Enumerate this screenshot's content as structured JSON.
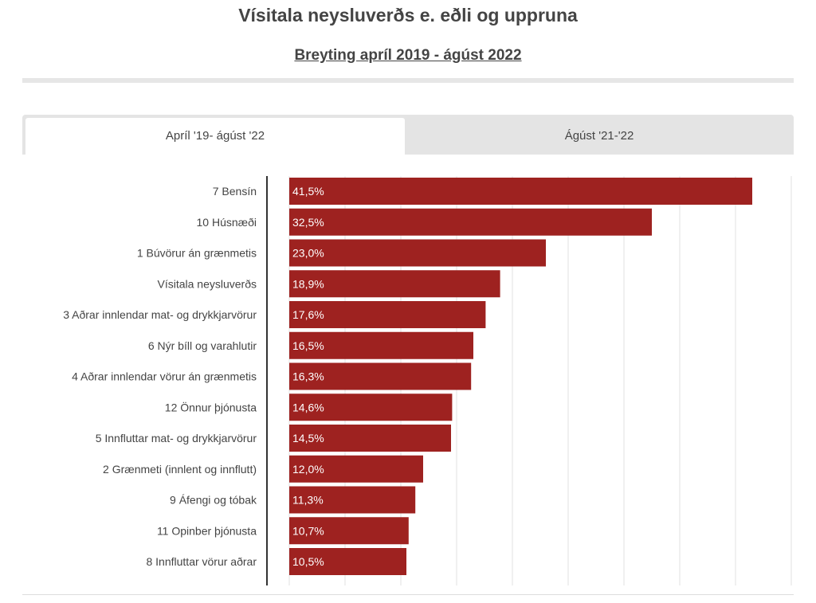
{
  "header": {
    "title": "Vísitala neysluverðs e. eðli og uppruna",
    "subtitle": "Breyting apríl 2019 - ágúst 2022"
  },
  "tabs": [
    {
      "label": "Apríl '19- ágúst '22",
      "active": true
    },
    {
      "label": "Ágúst '21-'22",
      "active": false
    }
  ],
  "chart_data": {
    "type": "bar",
    "orientation": "horizontal",
    "categories": [
      "7 Bensín",
      "10 Húsnæði",
      "1 Búvörur án grænmetis",
      "Vísitala neysluverðs",
      "3 Aðrar innlendar mat- og drykkjarvörur",
      "6 Nýr bíll og varahlutir",
      "4 Aðrar innlendar vörur án grænmetis",
      "12 Önnur þjónusta",
      "5 Innfluttar mat- og drykkjarvörur",
      "2 Grænmeti (innlent og innflutt)",
      "9 Áfengi og tóbak",
      "11 Opinber þjónusta",
      "8 Innfluttar vörur aðrar"
    ],
    "values": [
      41.5,
      32.5,
      23.0,
      18.9,
      17.6,
      16.5,
      16.3,
      14.6,
      14.5,
      12.0,
      11.3,
      10.7,
      10.5
    ],
    "labels": [
      "41,5%",
      "32,5%",
      "23,0%",
      "18,9%",
      "17,6%",
      "16,5%",
      "16,3%",
      "14,6%",
      "14,5%",
      "12,0%",
      "11,3%",
      "10,7%",
      "10,5%"
    ],
    "xlim": [
      0,
      45
    ],
    "grid_step": 5,
    "grid": true,
    "bar_color": "#9e2220",
    "legend": "none"
  }
}
